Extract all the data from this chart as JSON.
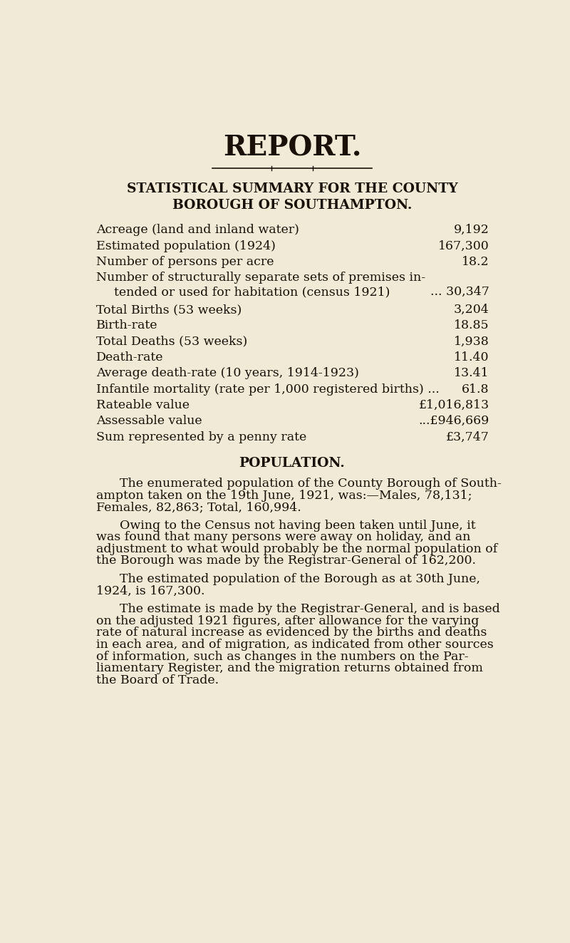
{
  "bg_color": "#f0ead6",
  "text_color": "#1a1008",
  "title": "REPORT.",
  "subtitle_line1": "STATISTICAL SUMMARY FOR THE COUNTY",
  "subtitle_line2": "BOROUGH OF SOUTHAMPTON.",
  "stats": [
    {
      "label": "Acreage (land and inland water)",
      "dots": "... ... ...",
      "value": "9,192",
      "indent": false,
      "multiline": false
    },
    {
      "label": "Estimated population (1924)",
      "dots": "... ... ... ...",
      "value": "167,300",
      "indent": false,
      "multiline": false
    },
    {
      "label": "Number of persons per acre",
      "dots": "... ... ... ...",
      "value": "18.2",
      "indent": false,
      "multiline": false
    },
    {
      "label": "Number of structurally separate sets of premises in-",
      "label2": "tended or used for habitation (census 1921)",
      "dots": "...",
      "value": "30,347",
      "indent": true,
      "multiline": true
    },
    {
      "label": "Total Births (53 weeks)",
      "dots": "... ... ... ... ...",
      "value": "3,204",
      "indent": false,
      "multiline": false
    },
    {
      "label": "Birth-rate",
      "dots": "... ... ... ... ... ... ...",
      "value": "18.85",
      "indent": false,
      "multiline": false
    },
    {
      "label": "Total Deaths (53 weeks)",
      "dots": "... ... ... ... ...",
      "value": "1,938",
      "indent": false,
      "multiline": false
    },
    {
      "label": "Death-rate",
      "dots": "... ... ... ... ... ... ...",
      "value": "11.40",
      "indent": false,
      "multiline": false
    },
    {
      "label": "Average death-rate (10 years, 1914-1923)",
      "dots": "... ...",
      "value": "13.41",
      "indent": false,
      "multiline": false
    },
    {
      "label": "Infantile mortality (rate per 1,000 registered births) ...",
      "dots": "",
      "value": "61.8",
      "indent": false,
      "multiline": false
    },
    {
      "label": "Rateable value",
      "dots": "... ... ... ... ...",
      "value": "£1,016,813",
      "indent": false,
      "multiline": false
    },
    {
      "label": "Assessable value",
      "dots": "... ... ...  —",
      "value": "...£946,669",
      "indent": false,
      "multiline": false
    },
    {
      "label": "Sum represented by a penny rate",
      "dots": "... ... ...",
      "value": "£3,747",
      "indent": false,
      "multiline": false
    }
  ],
  "section_title": "POPULATION.",
  "paragraphs": [
    [
      "      The enumerated population of the County Borough of South-",
      "ampton taken on the 19th June, 1921, was:—Males, 78,131;",
      "Females, 82,863; Total, 160,994."
    ],
    [
      "      Owing to the Census not having been taken until June, it",
      "was found that many persons were away on holiday, and an",
      "adjustment to what would probably be the normal population of",
      "the Borough was made by the Registrar-General of 162,200."
    ],
    [
      "      The estimated population of the Borough as at 30th June,",
      "1924, is 167,300."
    ],
    [
      "      The estimate is made by the Registrar-General, and is based",
      "on the adjusted 1921 figures, after allowance for the varying",
      "rate of natural increase as evidenced by the births and deaths",
      "in each area, and of migration, as indicated from other sources",
      "of information, such as changes in the numbers on the Par-",
      "liamentary Register, and the migration returns obtained from",
      "the Board of Trade."
    ]
  ]
}
